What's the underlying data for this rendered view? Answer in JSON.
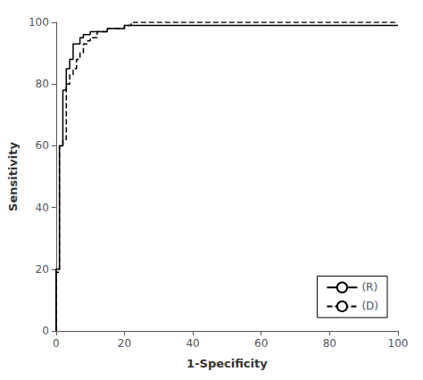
{
  "chart_data": {
    "type": "step",
    "xlabel": "1-Specificity",
    "ylabel": "Sensitivity",
    "xlim": [
      0,
      100
    ],
    "ylim": [
      0,
      100
    ],
    "xticks": [
      0,
      20,
      40,
      60,
      80,
      100
    ],
    "yticks": [
      0,
      20,
      40,
      60,
      80,
      100
    ],
    "grid": false,
    "legend": "lower right",
    "series": [
      {
        "name": "(R)",
        "color": "#000000",
        "line_style": "solid",
        "x": [
          0,
          0,
          1,
          1,
          2,
          2,
          2,
          3,
          3,
          4,
          4,
          5,
          5,
          7,
          8,
          10,
          15,
          20,
          100
        ],
        "values": [
          0,
          20,
          20,
          60,
          60,
          70,
          78,
          78,
          85,
          85,
          88,
          88,
          93,
          95,
          96,
          97,
          98,
          99,
          99
        ]
      },
      {
        "name": "(D)",
        "color": "#000000",
        "line_style": "dashed",
        "x": [
          0,
          0,
          1,
          1,
          2,
          3,
          4,
          5,
          6,
          7,
          8,
          9,
          10,
          12,
          15,
          20,
          22,
          100
        ],
        "values": [
          0,
          19,
          19,
          60,
          62,
          80,
          83,
          85,
          88,
          90,
          93,
          94,
          95,
          97,
          98,
          99,
          100,
          100
        ]
      }
    ]
  }
}
